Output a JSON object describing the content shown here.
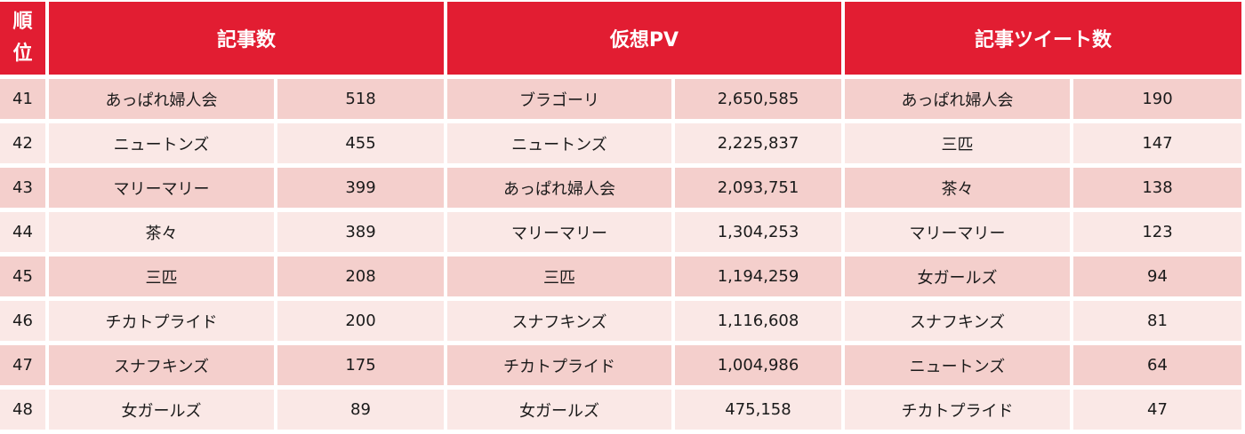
{
  "headers": {
    "rank_line1": "順",
    "rank_line2": "位",
    "articles": "記事数",
    "virtual_pv": "仮想PV",
    "article_tweets": "記事ツイート数"
  },
  "rows": [
    {
      "rank": "41",
      "articles_name": "あっぱれ婦人会",
      "articles_value": "518",
      "pv_name": "ブラゴーリ",
      "pv_value": "2,650,585",
      "tweets_name": "あっぱれ婦人会",
      "tweets_value": "190"
    },
    {
      "rank": "42",
      "articles_name": "ニュートンズ",
      "articles_value": "455",
      "pv_name": "ニュートンズ",
      "pv_value": "2,225,837",
      "tweets_name": "三匹",
      "tweets_value": "147"
    },
    {
      "rank": "43",
      "articles_name": "マリーマリー",
      "articles_value": "399",
      "pv_name": "あっぱれ婦人会",
      "pv_value": "2,093,751",
      "tweets_name": "茶々",
      "tweets_value": "138"
    },
    {
      "rank": "44",
      "articles_name": "茶々",
      "articles_value": "389",
      "pv_name": "マリーマリー",
      "pv_value": "1,304,253",
      "tweets_name": "マリーマリー",
      "tweets_value": "123"
    },
    {
      "rank": "45",
      "articles_name": "三匹",
      "articles_value": "208",
      "pv_name": "三匹",
      "pv_value": "1,194,259",
      "tweets_name": "女ガールズ",
      "tweets_value": "94"
    },
    {
      "rank": "46",
      "articles_name": "チカトプライド",
      "articles_value": "200",
      "pv_name": "スナフキンズ",
      "pv_value": "1,116,608",
      "tweets_name": "スナフキンズ",
      "tweets_value": "81"
    },
    {
      "rank": "47",
      "articles_name": "スナフキンズ",
      "articles_value": "175",
      "pv_name": "チカトプライド",
      "pv_value": "1,004,986",
      "tweets_name": "ニュートンズ",
      "tweets_value": "64"
    },
    {
      "rank": "48",
      "articles_name": "女ガールズ",
      "articles_value": "89",
      "pv_name": "女ガールズ",
      "pv_value": "475,158",
      "tweets_name": "チカトプライド",
      "tweets_value": "47"
    }
  ],
  "colors": {
    "header_bg": "#e21d32",
    "header_text": "#ffffff",
    "row_odd_bg": "#f4cfcc",
    "row_even_bg": "#fae8e6"
  }
}
